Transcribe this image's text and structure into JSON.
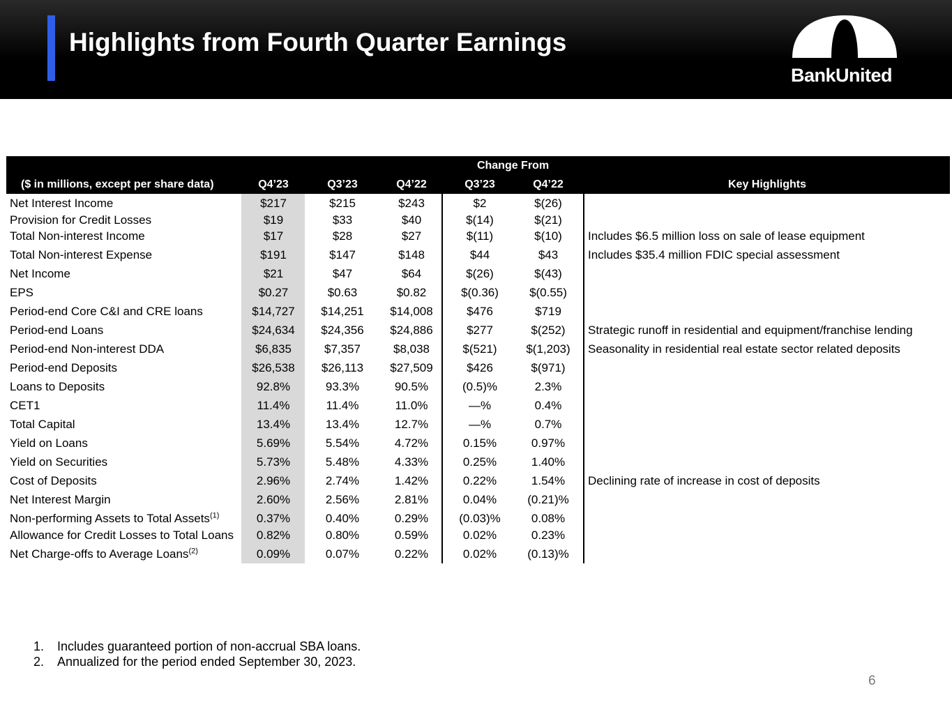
{
  "header": {
    "title": "Highlights from Fourth Quarter Earnings",
    "logo": "BankUnited"
  },
  "table": {
    "group_header": "Change From",
    "columns": [
      "($ in millions, except per share data)",
      "Q4’23",
      "Q3’23",
      "Q4’22",
      "Q3’23",
      "Q4’22",
      "Key Highlights"
    ],
    "rows": [
      {
        "label": "Net Interest Income",
        "values": [
          "$217",
          "$215",
          "$243",
          "$2",
          "$(26)"
        ]
      },
      {
        "label": "Provision for Credit Losses",
        "values": [
          "$19",
          "$33",
          "$40",
          "$(14)",
          "$(21)"
        ]
      },
      {
        "label": "Total Non-interest Income",
        "values": [
          "$17",
          "$28",
          "$27",
          "$(11)",
          "$(10)"
        ],
        "highlight": "Includes $6.5 million loss on sale of lease equipment"
      },
      {
        "label": "Total Non-interest Expense",
        "values": [
          "$191",
          "$147",
          "$148",
          "$44",
          "$43"
        ],
        "highlight": "Includes $35.4 million FDIC special assessment"
      },
      {
        "label": "Net Income",
        "values": [
          "$21",
          "$47",
          "$64",
          "$(26)",
          "$(43)"
        ]
      },
      {
        "label": "EPS",
        "values": [
          "$0.27",
          "$0.63",
          "$0.82",
          "$(0.36)",
          "$(0.55)"
        ]
      },
      {
        "label": "Period-end Core C&I and CRE loans",
        "values": [
          "$14,727",
          "$14,251",
          "$14,008",
          "$476",
          "$719"
        ]
      },
      {
        "label": "Period-end Loans",
        "values": [
          "$24,634",
          "$24,356",
          "$24,886",
          "$277",
          "$(252)"
        ],
        "highlight": "Strategic runoff in residential and equipment/franchise lending"
      },
      {
        "label": "Period-end Non-interest DDA",
        "values": [
          "$6,835",
          "$7,357",
          "$8,038",
          "$(521)",
          "$(1,203)"
        ],
        "highlight": "Seasonality in residential real estate sector related deposits"
      },
      {
        "label": "Period-end Deposits",
        "values": [
          "$26,538",
          "$26,113",
          "$27,509",
          "$426",
          "$(971)"
        ]
      },
      {
        "label": "Loans to Deposits",
        "values": [
          "92.8%",
          "93.3%",
          "90.5%",
          "(0.5)%",
          "2.3%"
        ]
      },
      {
        "label": "CET1",
        "values": [
          "11.4%",
          "11.4%",
          "11.0%",
          "—%",
          "0.4%"
        ]
      },
      {
        "label": "Total Capital",
        "values": [
          "13.4%",
          "13.4%",
          "12.7%",
          "—%",
          "0.7%"
        ]
      },
      {
        "label": "Yield on Loans",
        "values": [
          "5.69%",
          "5.54%",
          "4.72%",
          "0.15%",
          "0.97%"
        ]
      },
      {
        "label": "Yield on Securities",
        "values": [
          "5.73%",
          "5.48%",
          "4.33%",
          "0.25%",
          "1.40%"
        ]
      },
      {
        "label": "Cost of Deposits",
        "values": [
          "2.96%",
          "2.74%",
          "1.42%",
          "0.22%",
          "1.54%"
        ],
        "highlight": "Declining rate of increase in cost of deposits"
      },
      {
        "label": "Net Interest Margin",
        "values": [
          "2.60%",
          "2.56%",
          "2.81%",
          "0.04%",
          "(0.21)%"
        ]
      },
      {
        "label": "Non-performing Assets to Total Assets",
        "note": "(1)",
        "values": [
          "0.37%",
          "0.40%",
          "0.29%",
          "(0.03)%",
          "0.08%"
        ]
      },
      {
        "label": "Allowance for Credit Losses to Total Loans",
        "values": [
          "0.82%",
          "0.80%",
          "0.59%",
          "0.02%",
          "0.23%"
        ]
      },
      {
        "label": "Net Charge-offs to Average Loans",
        "note": "(2)",
        "values": [
          "0.09%",
          "0.07%",
          "0.22%",
          "0.02%",
          "(0.13)%"
        ]
      }
    ]
  },
  "footnotes": [
    {
      "number": "1.",
      "text": "Includes guaranteed portion of non-accrual SBA loans."
    },
    {
      "number": "2.",
      "text": "Annualized for the period ended September 30, 2023."
    }
  ],
  "page_number": "6"
}
